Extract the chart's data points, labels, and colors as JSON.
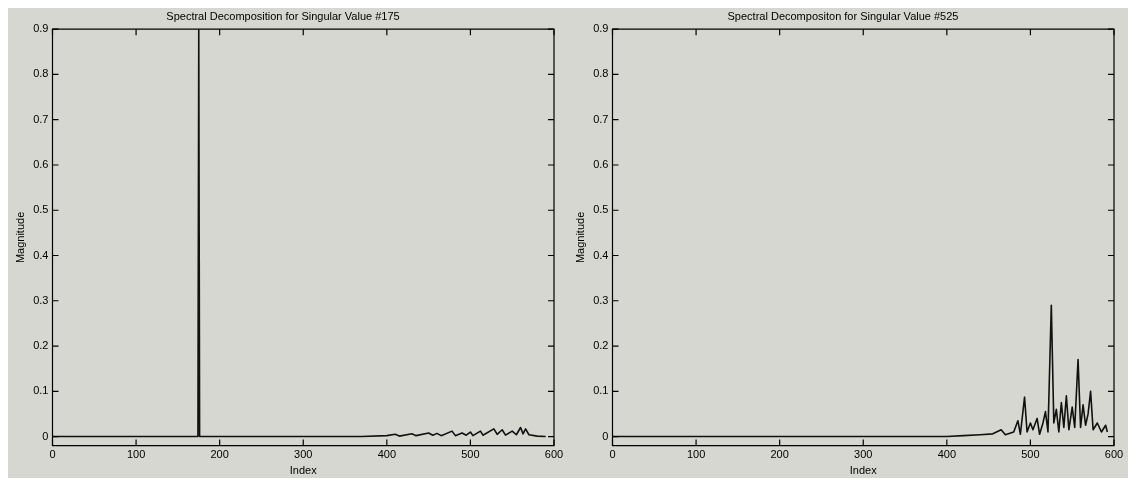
{
  "chart_data": [
    {
      "type": "line",
      "title": "Spectral Decomposition for Singular Value #175",
      "xlabel": "Index",
      "ylabel": "Magnitude",
      "xlim": [
        0,
        600
      ],
      "ylim": [
        -0.02,
        0.9
      ],
      "xticks": [
        0,
        100,
        200,
        300,
        400,
        500,
        600
      ],
      "yticks": [
        0,
        0.1,
        0.2,
        0.3,
        0.4,
        0.5,
        0.6,
        0.7,
        0.8,
        0.9
      ],
      "grid": false,
      "legend": false,
      "marker": "none",
      "line_style": "solid",
      "series": [
        {
          "color": "#111111",
          "x": [
            0,
            174,
            175,
            176,
            370,
            400,
            410,
            415,
            430,
            435,
            450,
            455,
            460,
            465,
            478,
            482,
            490,
            495,
            500,
            503,
            512,
            515,
            528,
            532,
            538,
            542,
            550,
            555,
            560,
            563,
            566,
            570,
            580,
            590
          ],
          "values": [
            0,
            0,
            0.9,
            0,
            0,
            0.002,
            0.005,
            0.001,
            0.006,
            0.002,
            0.008,
            0.003,
            0.007,
            0.002,
            0.012,
            0.002,
            0.008,
            0.003,
            0.01,
            0.002,
            0.012,
            0.003,
            0.017,
            0.005,
            0.015,
            0.003,
            0.012,
            0.004,
            0.02,
            0.006,
            0.017,
            0.004,
            0.001,
            0
          ]
        }
      ]
    },
    {
      "type": "line",
      "title": "Spectral Decompositon for Singular Value #525",
      "xlabel": "Index",
      "ylabel": "Magnitude",
      "xlim": [
        0,
        600
      ],
      "ylim": [
        -0.02,
        0.9
      ],
      "xticks": [
        0,
        100,
        200,
        300,
        400,
        500,
        600
      ],
      "yticks": [
        0,
        0.1,
        0.2,
        0.3,
        0.4,
        0.5,
        0.6,
        0.7,
        0.8,
        0.9
      ],
      "grid": false,
      "legend": false,
      "marker": "none",
      "line_style": "solid",
      "series": [
        {
          "color": "#111111",
          "x": [
            0,
            400,
            420,
            440,
            455,
            465,
            470,
            480,
            485,
            488,
            493,
            496,
            500,
            503,
            508,
            511,
            515,
            518,
            521,
            525,
            528,
            531,
            534,
            537,
            540,
            543,
            546,
            550,
            553,
            557,
            560,
            563,
            566,
            569,
            572,
            575,
            580,
            585,
            590,
            592
          ],
          "values": [
            0,
            0,
            0.002,
            0.004,
            0.006,
            0.015,
            0.004,
            0.01,
            0.035,
            0.005,
            0.087,
            0.01,
            0.03,
            0.015,
            0.04,
            0.005,
            0.03,
            0.055,
            0.01,
            0.29,
            0.03,
            0.06,
            0.01,
            0.075,
            0.02,
            0.09,
            0.015,
            0.065,
            0.02,
            0.17,
            0.02,
            0.07,
            0.025,
            0.05,
            0.1,
            0.015,
            0.03,
            0.01,
            0.025,
            0.01
          ]
        }
      ]
    }
  ]
}
